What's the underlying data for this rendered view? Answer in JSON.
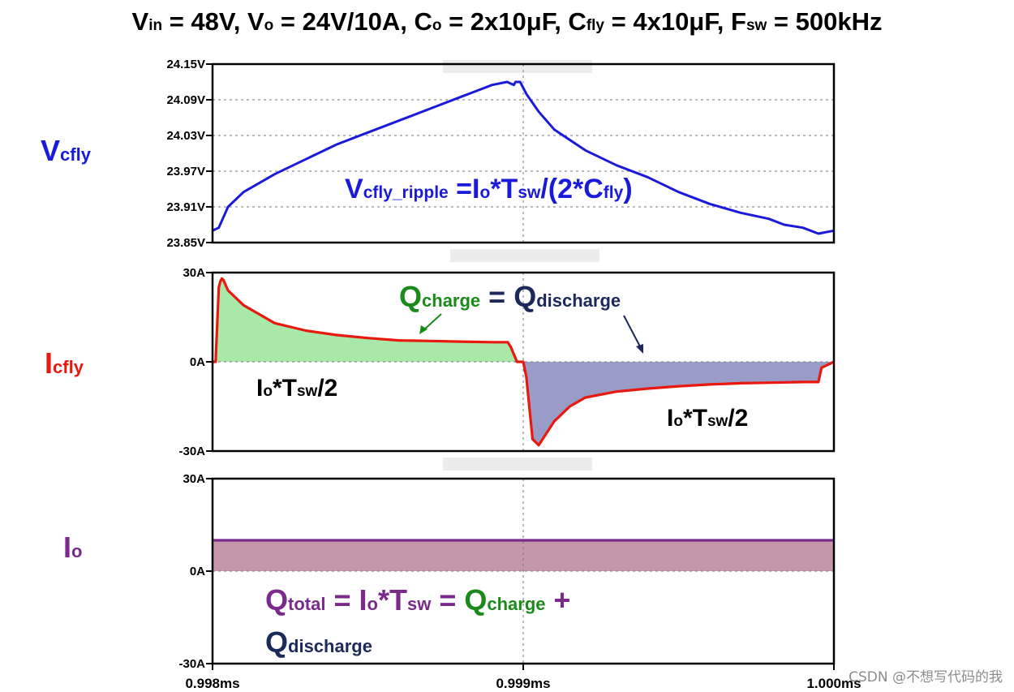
{
  "title": {
    "parts": [
      {
        "t": "V",
        "s": "n"
      },
      {
        "t": "in",
        "s": "sub"
      },
      {
        "t": " = 48V, V",
        "s": "n"
      },
      {
        "t": "o",
        "s": "sub"
      },
      {
        "t": " = 24V/10A, C",
        "s": "n"
      },
      {
        "t": "o",
        "s": "sub"
      },
      {
        "t": " = 2x10μF, C",
        "s": "n"
      },
      {
        "t": "fly",
        "s": "sub"
      },
      {
        "t": " = 4x10μF, F",
        "s": "n"
      },
      {
        "t": "sw",
        "s": "sub"
      },
      {
        "t": " = 500kHz",
        "s": "n"
      }
    ]
  },
  "panel_labels": {
    "vcfly": {
      "main": "V",
      "sub": "cfly",
      "color": "#1a1adb"
    },
    "icfly": {
      "main": "I",
      "sub": "cfly",
      "color": "#e8190f"
    },
    "io": {
      "main": "I",
      "sub": "o",
      "color": "#7a2a8a"
    }
  },
  "annotations": {
    "ripple": {
      "main": "V",
      "sub": "cfly_ripple",
      "rest": " =I",
      "sub2": "o",
      "rest2": "*T",
      "sub3": "sw",
      "rest3": "/(2*C",
      "sub4": "fly",
      "rest4": ")",
      "color": "#1a1adb"
    },
    "qeq": {
      "q1": "Q",
      "q1sub": "charge",
      "eq": " = ",
      "q2": "Q",
      "q2sub": "discharge"
    },
    "io_tsw_left": {
      "a": "I",
      "asub": "o",
      "b": "*T",
      "bsub": "sw",
      "c": "/2"
    },
    "io_tsw_right": {
      "a": "I",
      "asub": "o",
      "b": "*T",
      "bsub": "sw",
      "c": "/2"
    },
    "qtotal_line1": {
      "a": "Q",
      "asub": "total",
      "b": " = I",
      "bsub": "o",
      "c": "*T",
      "csub": "sw",
      "d": " = ",
      "e": "Q",
      "esub": "charge",
      "f": " +"
    },
    "qtotal_line2": {
      "a": "Q",
      "asub": "discharge"
    }
  },
  "colors": {
    "green": "#1a8a1a",
    "navy": "#1c2a5a",
    "purple": "#7a2a8a",
    "blue": "#1a1adb",
    "red": "#e8190f"
  },
  "watermark": "CSDN @不想写代码的我",
  "chart_data": [
    {
      "type": "line",
      "series": [
        {
          "x": [
            0.998,
            0.99802,
            0.99805,
            0.9981,
            0.9982,
            0.9983,
            0.9984,
            0.9985,
            0.9986,
            0.9987,
            0.9988,
            0.99885,
            0.9989,
            0.998948,
            0.99897,
            0.998975,
            0.99899,
            0.99901,
            0.99905,
            0.9991,
            0.9992,
            0.9993,
            0.9994,
            0.9995,
            0.9996,
            0.9997,
            0.99979,
            0.99984,
            0.9999,
            0.99995,
            1.0
          ],
          "y": [
            23.87,
            23.875,
            23.91,
            23.935,
            23.965,
            23.99,
            24.015,
            24.035,
            24.055,
            24.075,
            24.095,
            24.105,
            24.115,
            24.12,
            24.115,
            24.12,
            24.12,
            24.1,
            24.07,
            24.04,
            24.005,
            23.98,
            23.96,
            23.935,
            23.915,
            23.9,
            23.89,
            23.88,
            23.875,
            23.865,
            23.87
          ],
          "color": "#1a1adb"
        }
      ],
      "yticks": [
        "24.15V",
        "24.09V",
        "24.03V",
        "23.97V",
        "23.91V",
        "23.85V"
      ],
      "ylim": [
        23.85,
        24.15
      ],
      "grid": true
    },
    {
      "type": "area",
      "series": [
        {
          "x": [
            0.998,
            0.99801,
            0.99802,
            0.998025,
            0.99803,
            0.998035,
            0.99805,
            0.9981,
            0.99815,
            0.9982,
            0.9983,
            0.9984,
            0.9985,
            0.9986,
            0.9987,
            0.9988,
            0.9989,
            0.99895,
            0.99896,
            0.99898,
            0.999,
            0.99901,
            0.99903,
            0.99905,
            0.9991,
            0.99915,
            0.9992,
            0.9993,
            0.9994,
            0.9995,
            0.9996,
            0.9997,
            0.9998,
            0.9999,
            0.99995,
            0.99996,
            1.0
          ],
          "y": [
            0,
            0,
            25,
            27,
            28,
            27.5,
            24,
            19,
            16,
            13,
            10.5,
            9,
            8,
            7.2,
            7,
            6.8,
            6.6,
            6.6,
            5,
            0,
            0,
            -5,
            -26,
            -28,
            -20,
            -15,
            -12,
            -10,
            -9,
            -8.2,
            -7.6,
            -7.2,
            -7,
            -6.8,
            -6.8,
            -2,
            0
          ],
          "color": "#e8190f"
        }
      ],
      "yticks": [
        "30A",
        "0A",
        "-30A"
      ],
      "ylim": [
        -30,
        30
      ],
      "grid": true
    },
    {
      "type": "area",
      "series": [
        {
          "x": [
            0.998,
            1.0
          ],
          "y": [
            10,
            10
          ],
          "color": "#7a2a8a"
        }
      ],
      "yticks": [
        "30A",
        "0A",
        "-30A"
      ],
      "ylim": [
        -30,
        30
      ],
      "grid": true
    }
  ],
  "xticks": [
    "0.998ms",
    "0.999ms",
    "1.000ms"
  ],
  "xlim": [
    0.998,
    1.0
  ]
}
